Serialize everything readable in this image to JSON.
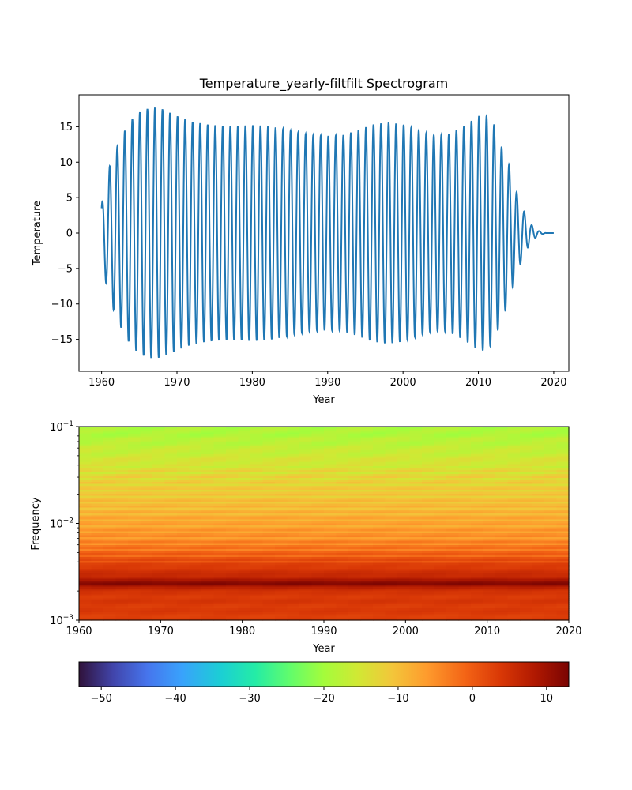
{
  "chart_data": [
    {
      "type": "line",
      "title": "Temperature_yearly-filtfilt Spectrogram",
      "xlabel": "Year",
      "ylabel": "Temperature",
      "xlim": [
        1957,
        2022
      ],
      "ylim": [
        -19.5,
        19.5
      ],
      "xticks": [
        1960,
        1970,
        1980,
        1990,
        2000,
        2010,
        2020
      ],
      "yticks": [
        -15,
        -10,
        -5,
        0,
        5,
        10,
        15
      ],
      "color": "#1f77b4",
      "grid": false,
      "series": [
        {
          "x_start": 1960,
          "x_end": 2020,
          "period_years": 1,
          "start_value": -3.5,
          "envelope": {
            "x": [
              1960,
              1961,
              1962,
              1963,
              1964,
              1965,
              1966,
              1967,
              1968,
              1970,
              1972,
              1974,
              1976,
              1978,
              1980,
              1982,
              1984,
              1986,
              1988,
              1990,
              1992,
              1994,
              1996,
              1998,
              2000,
              2002,
              2004,
              2006,
              2008,
              2010,
              2011,
              2012,
              2013,
              2014,
              2015,
              2016,
              2017,
              2018,
              2019,
              2020
            ],
            "y": [
              4.0,
              9.2,
              12.0,
              14.3,
              16.0,
              17.0,
              17.5,
              17.7,
              17.5,
              16.5,
              15.7,
              15.3,
              15.1,
              15.1,
              15.2,
              15.1,
              14.7,
              14.2,
              13.8,
              13.7,
              13.8,
              14.5,
              15.3,
              15.6,
              15.3,
              14.5,
              13.8,
              13.9,
              15.0,
              16.5,
              16.6,
              15.5,
              12.3,
              10.0,
              6.0,
              3.2,
              1.2,
              0.3,
              0.0,
              0.0
            ]
          }
        }
      ]
    },
    {
      "type": "heatmap",
      "xlabel": "Year",
      "ylabel": "Frequency",
      "xlim": [
        1960,
        2020
      ],
      "ylim": [
        0.001,
        0.1
      ],
      "yscale": "log",
      "xticks": [
        1960,
        1970,
        1980,
        1990,
        2000,
        2010,
        2020
      ],
      "yticks": [
        "10^-3",
        "10^-2",
        "10^-1"
      ],
      "colormap": "turbo",
      "frequency_profile": {
        "log10_f": [
          -3.0,
          -2.85,
          -2.7,
          -2.62,
          -2.58,
          -2.55,
          -2.45,
          -2.35,
          -2.25,
          -2.15,
          -2.0,
          -1.85,
          -1.7,
          -1.55,
          -1.4,
          -1.25,
          -1.1,
          -1.0
        ],
        "db": [
          3.0,
          3.5,
          4.0,
          12.0,
          9.0,
          6.0,
          3.5,
          0.0,
          -3.0,
          -5.0,
          -7.0,
          -9.0,
          -11.0,
          -12.5,
          -14.5,
          -16.5,
          -18.5,
          -19.5
        ]
      },
      "colorbar": {
        "range": [
          -53,
          13
        ],
        "ticks": [
          -50,
          -40,
          -30,
          -20,
          -10,
          0,
          10
        ]
      }
    }
  ]
}
